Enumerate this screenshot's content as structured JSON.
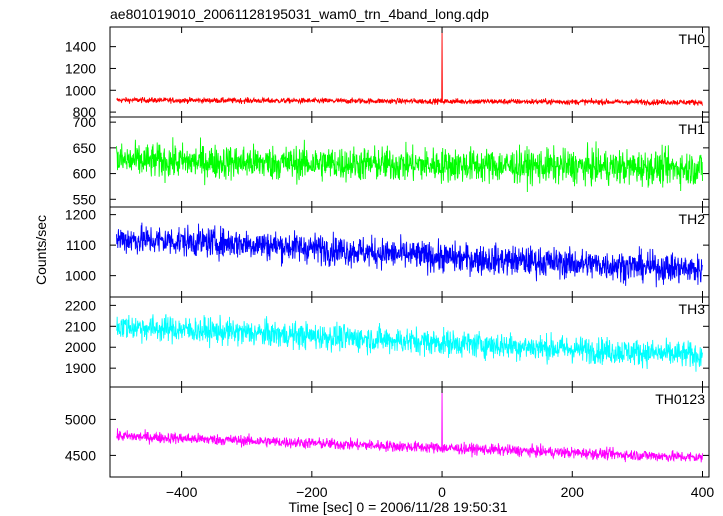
{
  "chart_data": {
    "type": "line",
    "title": "ae801019010_20061128195031_wam0_trn_4band_long.qdp",
    "xlabel": "Time [sec] 0 = 2006/11/28 19:50:31",
    "ylabel": "Counts/sec",
    "xlim": [
      -510,
      410
    ],
    "xticks": [
      -400,
      -200,
      0,
      200,
      400
    ],
    "grid": false,
    "panels": [
      {
        "name": "TH0",
        "color": "#ff0000",
        "ylim": [
          755,
          1580
        ],
        "yticks": [
          800,
          1000,
          1200,
          1400
        ],
        "level": [
          [
            -500,
            910
          ],
          [
            400,
            890
          ]
        ],
        "noise": 18,
        "spike": {
          "x": 0,
          "y": 1570
        }
      },
      {
        "name": "TH1",
        "color": "#00ff00",
        "ylim": [
          535,
          710
        ],
        "yticks": [
          550,
          600,
          650,
          700
        ],
        "level": [
          [
            -500,
            625
          ],
          [
            400,
            610
          ]
        ],
        "noise": 24
      },
      {
        "name": "TH2",
        "color": "#0000ff",
        "ylim": [
          930,
          1225
        ],
        "yticks": [
          1000,
          1100,
          1200
        ],
        "level": [
          [
            -500,
            1120
          ],
          [
            -300,
            1105
          ],
          [
            0,
            1060
          ],
          [
            400,
            1020
          ]
        ],
        "noise": 35
      },
      {
        "name": "TH3",
        "color": "#00ffff",
        "ylim": [
          1810,
          2240
        ],
        "yticks": [
          1900,
          2000,
          2100,
          2200
        ],
        "level": [
          [
            -500,
            2100
          ],
          [
            400,
            1960
          ]
        ],
        "noise": 45
      },
      {
        "name": "TH0123",
        "color": "#ff00ff",
        "ylim": [
          4200,
          5450
        ],
        "yticks": [
          4500,
          5000
        ],
        "level": [
          [
            -500,
            4770
          ],
          [
            400,
            4470
          ]
        ],
        "noise": 55,
        "spike": {
          "x": 0,
          "y": 5420
        }
      }
    ]
  }
}
